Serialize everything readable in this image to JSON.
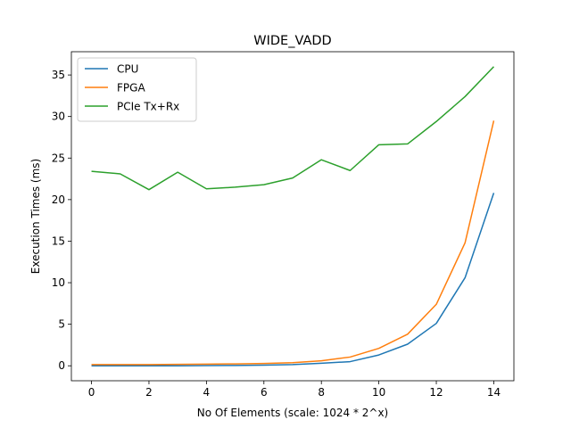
{
  "chart_data": {
    "type": "line",
    "title": "WIDE_VADD",
    "xlabel": "No Of Elements (scale: 1024 * 2^x)",
    "ylabel": "Execution Times (ms)",
    "xlim": [
      -0.7,
      14.7
    ],
    "ylim": [
      -1.8,
      37.8
    ],
    "xticks": [
      0,
      2,
      4,
      6,
      8,
      10,
      12,
      14
    ],
    "yticks": [
      0,
      5,
      10,
      15,
      20,
      25,
      30,
      35
    ],
    "grid": false,
    "legend_position": "top-left",
    "x": [
      0,
      1,
      2,
      3,
      4,
      5,
      6,
      7,
      8,
      9,
      10,
      11,
      12,
      13,
      14
    ],
    "series": [
      {
        "name": "CPU",
        "color": "#1f77b4",
        "values": [
          0.0,
          0.0,
          0.0,
          0.0,
          0.02,
          0.04,
          0.08,
          0.15,
          0.3,
          0.5,
          1.3,
          2.6,
          5.1,
          10.6,
          20.8
        ]
      },
      {
        "name": "FPGA",
        "color": "#ff7f0e",
        "values": [
          0.15,
          0.15,
          0.15,
          0.17,
          0.2,
          0.23,
          0.28,
          0.38,
          0.6,
          1.05,
          2.1,
          3.8,
          7.4,
          14.8,
          29.5
        ]
      },
      {
        "name": "PCIe Tx+Rx",
        "color": "#2ca02c",
        "values": [
          23.4,
          23.1,
          21.2,
          23.3,
          21.3,
          21.5,
          21.8,
          22.6,
          24.8,
          23.5,
          26.6,
          26.7,
          29.4,
          32.4,
          36.0
        ]
      }
    ]
  }
}
